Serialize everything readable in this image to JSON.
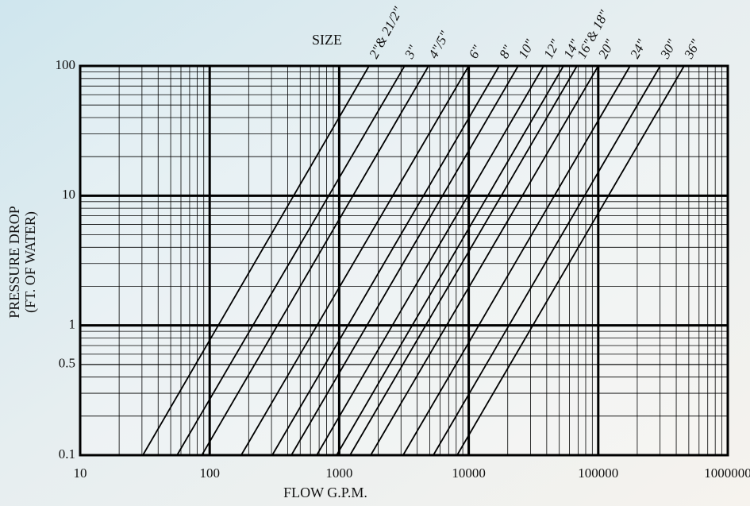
{
  "chart_data": {
    "type": "line",
    "title": "SIZE",
    "x_label": "FLOW G.P.M.",
    "y_label": [
      "PRESSURE DROP",
      "(FT. OF WATER)"
    ],
    "xscale": "log",
    "yscale": "log",
    "grid": true,
    "xlim": [
      10,
      1000000
    ],
    "ylim": [
      0.1,
      100
    ],
    "xticks": [
      10,
      100,
      1000,
      10000,
      100000,
      1000000
    ],
    "yticks": [
      0.1,
      0.5,
      1,
      10,
      100
    ],
    "series": [
      {
        "name": "2\"& 21/2\"",
        "color": "#000000",
        "x": [
          30.5,
          1700
        ],
        "values": [
          0.1,
          100
        ]
      },
      {
        "name": "3\"",
        "color": "#000000",
        "x": [
          56,
          3200
        ],
        "values": [
          0.1,
          100
        ]
      },
      {
        "name": "4\"/5\"",
        "color": "#000000",
        "x": [
          87,
          4900
        ],
        "values": [
          0.1,
          100
        ]
      },
      {
        "name": "6\"",
        "color": "#000000",
        "x": [
          175,
          10000
        ],
        "values": [
          0.1,
          100
        ]
      },
      {
        "name": "8\"",
        "color": "#000000",
        "x": [
          304,
          17200
        ],
        "values": [
          0.1,
          100
        ]
      },
      {
        "name": "10\"",
        "color": "#000000",
        "x": [
          427,
          24100
        ],
        "values": [
          0.1,
          100
        ]
      },
      {
        "name": "12\"",
        "color": "#000000",
        "x": [
          671,
          37900
        ],
        "values": [
          0.1,
          100
        ]
      },
      {
        "name": "14\"",
        "color": "#000000",
        "x": [
          954,
          53900
        ],
        "values": [
          0.1,
          100
        ]
      },
      {
        "name": "16\"& 18\"",
        "color": "#000000",
        "x": [
          1212,
          68500
        ],
        "values": [
          0.1,
          100
        ]
      },
      {
        "name": "20\"",
        "color": "#000000",
        "x": [
          1750,
          100000
        ],
        "values": [
          0.1,
          100
        ]
      },
      {
        "name": "24\"",
        "color": "#000000",
        "x": [
          3115,
          176000
        ],
        "values": [
          0.1,
          100
        ]
      },
      {
        "name": "30\"",
        "color": "#000000",
        "x": [
          5330,
          301000
        ],
        "values": [
          0.1,
          100
        ]
      },
      {
        "name": "36\"",
        "color": "#000000",
        "x": [
          8140,
          460000
        ],
        "values": [
          0.1,
          100
        ]
      }
    ]
  }
}
